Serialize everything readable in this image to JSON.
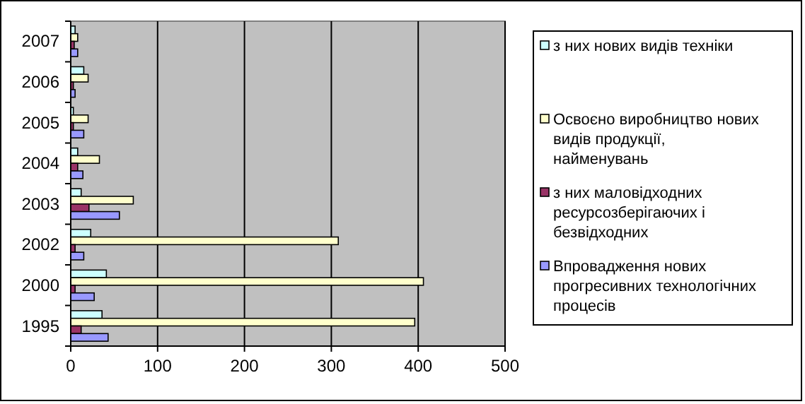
{
  "chart_data": {
    "type": "bar",
    "orientation": "horizontal",
    "categories": [
      "2007",
      "2006",
      "2005",
      "2004",
      "2003",
      "2002",
      "2000",
      "1995"
    ],
    "series": [
      {
        "name": "з них нових видів техніки",
        "color": "#ccffff",
        "values": [
          5,
          15,
          3,
          8,
          12,
          23,
          41,
          36
        ]
      },
      {
        "name": "Освоєно виробництво нових видів продукції, найменувань",
        "color": "#ffffcc",
        "values": [
          8,
          20,
          20,
          33,
          72,
          308,
          406,
          396
        ]
      },
      {
        "name": "з них маловідходних ресурсозберігаючих і безвідходних",
        "color": "#993366",
        "values": [
          4,
          3,
          3,
          8,
          21,
          5,
          5,
          12
        ]
      },
      {
        "name": "Впровадження нових прогресивних технологічних процесів",
        "color": "#9999ff",
        "values": [
          8,
          5,
          15,
          14,
          56,
          15,
          27,
          43
        ]
      }
    ],
    "xlim": [
      0,
      500
    ],
    "xticks": [
      0,
      100,
      200,
      300,
      400,
      500
    ],
    "grid": "x",
    "legend": "right"
  }
}
